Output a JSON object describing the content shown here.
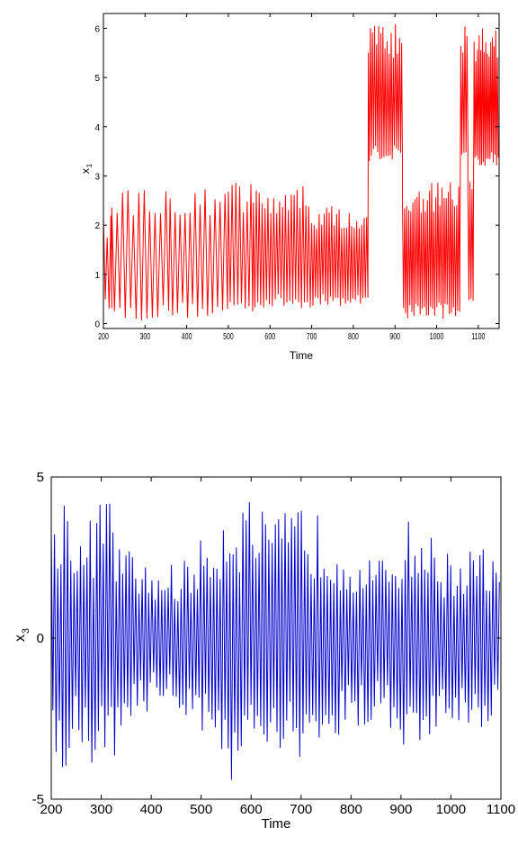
{
  "chart_data": [
    {
      "type": "line",
      "title": "",
      "xlabel": "Time",
      "ylabel": "x",
      "ylabel_sub": "1",
      "xlim": [
        200,
        1150
      ],
      "ylim": [
        -0.1,
        6.3
      ],
      "xticks": [
        200,
        300,
        400,
        500,
        600,
        700,
        800,
        900,
        1000,
        1100
      ],
      "yticks": [
        0,
        1,
        2,
        3,
        4,
        5,
        6
      ],
      "grid": false,
      "color": "#ff0000",
      "series": [
        {
          "segments": [
            {
              "x_start": 200,
              "x_end": 220,
              "period": 9,
              "low": 0.3,
              "high": 2.2
            },
            {
              "x_start": 220,
              "x_end": 360,
              "period": 13,
              "low": 0.05,
              "high": 2.9
            },
            {
              "x_start": 360,
              "x_end": 500,
              "period": 12,
              "low": 0.1,
              "high": 2.9
            },
            {
              "x_start": 500,
              "x_end": 560,
              "period": 9,
              "low": 0.2,
              "high": 2.9
            },
            {
              "x_start": 560,
              "x_end": 700,
              "period": 7,
              "low": 0.3,
              "high": 2.8
            },
            {
              "x_start": 700,
              "x_end": 836,
              "period": 6,
              "low": 0.35,
              "high": 2.4
            },
            {
              "x_start": 836,
              "x_end": 918,
              "period": 5,
              "low": 3.3,
              "high": 6.1
            },
            {
              "x_start": 918,
              "x_end": 1058,
              "period": 5,
              "low": 0.1,
              "high": 2.9
            },
            {
              "x_start": 1058,
              "x_end": 1075,
              "period": 5,
              "low": 3.4,
              "high": 6.1
            },
            {
              "x_start": 1075,
              "x_end": 1090,
              "period": 5,
              "low": 0.2,
              "high": 2.9
            },
            {
              "x_start": 1090,
              "x_end": 1150,
              "period": 4,
              "low": 3.2,
              "high": 6.0
            }
          ]
        }
      ]
    },
    {
      "type": "line",
      "title": "",
      "xlabel": "Time",
      "ylabel": "x",
      "ylabel_sub": "3",
      "xlim": [
        200,
        1100
      ],
      "ylim": [
        -5,
        5
      ],
      "xticks": [
        200,
        300,
        400,
        500,
        600,
        700,
        800,
        900,
        1000,
        1100
      ],
      "yticks": [
        -5,
        0,
        5
      ],
      "grid": false,
      "color": "#0000cc",
      "series": [
        {
          "period": 6.5,
          "amplitude_envelope": [
            {
              "x": 200,
              "amp": 4.5
            },
            {
              "x": 230,
              "amp": 4.7
            },
            {
              "x": 260,
              "amp": 3.2
            },
            {
              "x": 310,
              "amp": 4.8
            },
            {
              "x": 340,
              "amp": 3.0
            },
            {
              "x": 400,
              "amp": 2.2
            },
            {
              "x": 460,
              "amp": 2.4
            },
            {
              "x": 520,
              "amp": 3.4
            },
            {
              "x": 560,
              "amp": 4.5
            },
            {
              "x": 600,
              "amp": 4.4
            },
            {
              "x": 640,
              "amp": 3.6
            },
            {
              "x": 700,
              "amp": 4.3
            },
            {
              "x": 740,
              "amp": 3.8
            },
            {
              "x": 800,
              "amp": 3.0
            },
            {
              "x": 860,
              "amp": 2.4
            },
            {
              "x": 920,
              "amp": 3.8
            },
            {
              "x": 960,
              "amp": 3.2
            },
            {
              "x": 1000,
              "amp": 2.6
            },
            {
              "x": 1060,
              "amp": 2.9
            },
            {
              "x": 1100,
              "amp": 2.3
            }
          ]
        }
      ]
    }
  ]
}
